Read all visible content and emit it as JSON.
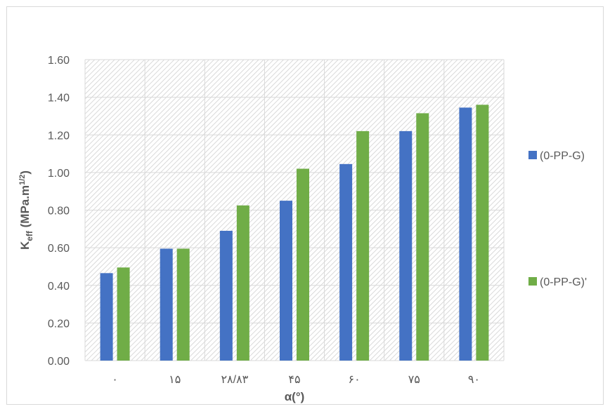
{
  "chart_data": {
    "type": "bar",
    "categories": [
      "٠",
      "١۵",
      "٢٨/٨٣",
      "۴۵",
      "۶٠",
      "٧۵",
      "٩٠"
    ],
    "series": [
      {
        "name": "(0-PP-G)",
        "color": "#4472c4",
        "values": [
          0.465,
          0.595,
          0.69,
          0.85,
          1.045,
          1.22,
          1.345
        ]
      },
      {
        "name": "(0-PP-G)'",
        "color": "#70ad47",
        "values": [
          0.495,
          0.595,
          0.825,
          1.02,
          1.22,
          1.315,
          1.36
        ]
      }
    ],
    "ylim": [
      0,
      1.6
    ],
    "yticks": [
      "0.00",
      "0.20",
      "0.40",
      "0.60",
      "0.80",
      "1.00",
      "1.20",
      "1.40",
      "1.60"
    ],
    "xlabel": "α(°)",
    "ylabel": {
      "main": "K",
      "sub": "eff",
      "unit": " (MPa.m",
      "sup": "1/2",
      "close": ")"
    },
    "grid": true,
    "legend_position": "right"
  }
}
